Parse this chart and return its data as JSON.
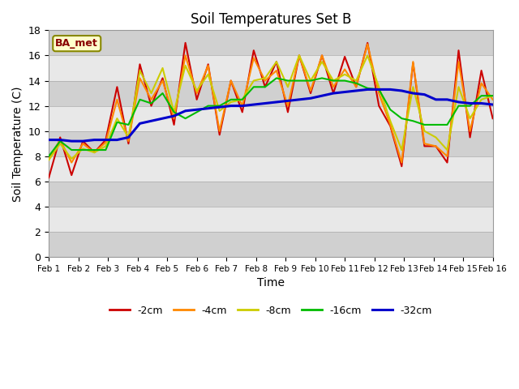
{
  "title": "Soil Temperatures Set B",
  "xlabel": "Time",
  "ylabel": "Soil Temperature (C)",
  "xlabels": [
    "Feb 1",
    "Feb 2",
    "Feb 3",
    "Feb 4",
    "Feb 5",
    "Feb 6",
    "Feb 7",
    "Feb 8",
    "Feb 9",
    "Feb 10",
    "Feb 11",
    "Feb 12",
    "Feb 13",
    "Feb 14",
    "Feb 15",
    "Feb 16"
  ],
  "ylim": [
    0,
    18
  ],
  "yticks": [
    0,
    2,
    4,
    6,
    8,
    10,
    12,
    14,
    16,
    18
  ],
  "annotation": "BA_met",
  "series": {
    "-2cm": {
      "color": "#cc0000",
      "data": [
        6.3,
        9.5,
        6.5,
        9.2,
        8.3,
        9.3,
        13.5,
        9.0,
        15.3,
        12.0,
        14.2,
        10.5,
        17.0,
        12.5,
        15.3,
        9.7,
        14.0,
        11.5,
        16.4,
        13.5,
        15.5,
        11.5,
        16.0,
        13.0,
        16.0,
        13.0,
        15.9,
        13.5,
        17.0,
        12.0,
        10.4,
        7.2,
        15.4,
        8.8,
        8.8,
        7.5,
        16.4,
        9.5,
        14.8,
        11.0
      ]
    },
    "-4cm": {
      "color": "#ff8800",
      "data": [
        7.8,
        9.3,
        7.5,
        9.0,
        8.3,
        9.1,
        12.5,
        9.2,
        14.2,
        12.5,
        14.0,
        11.0,
        16.0,
        13.0,
        15.2,
        10.0,
        14.0,
        12.0,
        15.8,
        14.0,
        14.8,
        12.0,
        16.0,
        13.2,
        16.0,
        13.5,
        14.9,
        13.5,
        16.9,
        13.0,
        10.5,
        7.5,
        15.5,
        9.0,
        8.8,
        8.0,
        15.5,
        10.0,
        13.8,
        12.5
      ]
    },
    "-8cm": {
      "color": "#cccc00",
      "data": [
        7.7,
        9.0,
        7.8,
        8.6,
        8.3,
        8.8,
        11.0,
        9.5,
        14.8,
        13.0,
        15.0,
        11.5,
        15.2,
        13.2,
        14.5,
        11.6,
        12.3,
        12.5,
        14.0,
        14.2,
        15.5,
        13.5,
        16.0,
        14.0,
        15.5,
        14.0,
        14.5,
        14.0,
        16.0,
        13.5,
        10.8,
        8.5,
        13.5,
        10.0,
        9.5,
        8.5,
        13.5,
        11.0,
        12.5,
        12.8
      ]
    },
    "-16cm": {
      "color": "#00bb00",
      "data": [
        8.0,
        9.2,
        8.5,
        8.5,
        8.5,
        8.5,
        10.7,
        10.5,
        12.5,
        12.2,
        13.0,
        11.5,
        11.0,
        11.5,
        12.0,
        12.0,
        12.5,
        12.5,
        13.5,
        13.5,
        14.2,
        14.0,
        14.0,
        14.0,
        14.2,
        14.0,
        14.0,
        13.8,
        13.4,
        13.3,
        11.7,
        11.0,
        10.8,
        10.5,
        10.5,
        10.5,
        12.0,
        12.0,
        12.8,
        12.8
      ]
    },
    "-32cm": {
      "color": "#0000cc",
      "data": [
        9.3,
        9.3,
        9.2,
        9.2,
        9.3,
        9.3,
        9.3,
        9.5,
        10.6,
        10.8,
        11.0,
        11.2,
        11.6,
        11.7,
        11.8,
        11.9,
        12.0,
        12.0,
        12.1,
        12.2,
        12.3,
        12.4,
        12.5,
        12.6,
        12.8,
        13.0,
        13.1,
        13.2,
        13.3,
        13.3,
        13.3,
        13.2,
        13.0,
        12.9,
        12.5,
        12.5,
        12.3,
        12.2,
        12.2,
        12.1
      ]
    }
  },
  "legend_order": [
    "-2cm",
    "-4cm",
    "-8cm",
    "-16cm",
    "-32cm"
  ]
}
